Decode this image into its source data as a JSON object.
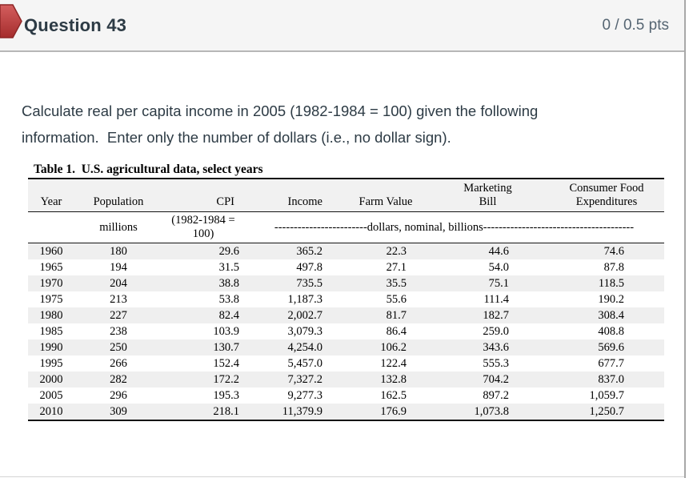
{
  "header": {
    "flag_icon": "red-flag-marker",
    "title": "Question 43",
    "points": "0 / 0.5 pts"
  },
  "question": {
    "line1": "Calculate real per capita income in 2005 (1982-1984 = 100) given the following",
    "line2": "information.  Enter only the number of dollars (i.e., no dollar sign)."
  },
  "table": {
    "title": "Table 1.  U.S. agricultural data, select years",
    "columns": [
      "Year",
      "Population",
      "CPI",
      "Income",
      "Farm Value",
      "Marketing Bill",
      "Consumer Food Expenditures"
    ],
    "subheader": {
      "population_units": "millions",
      "cpi_base": "(1982-1984 = 100)",
      "value_units": "------------------------dollars, nominal, billions---------------------------------------"
    },
    "rows": [
      [
        "1960",
        "180",
        "29.6",
        "365.2",
        "22.3",
        "44.6",
        "74.6"
      ],
      [
        "1965",
        "194",
        "31.5",
        "497.8",
        "27.1",
        "54.0",
        "87.8"
      ],
      [
        "1970",
        "204",
        "38.8",
        "735.5",
        "35.5",
        "75.1",
        "118.5"
      ],
      [
        "1975",
        "213",
        "53.8",
        "1,187.3",
        "55.6",
        "111.4",
        "190.2"
      ],
      [
        "1980",
        "227",
        "82.4",
        "2,002.7",
        "81.7",
        "182.7",
        "308.4"
      ],
      [
        "1985",
        "238",
        "103.9",
        "3,079.3",
        "86.4",
        "259.0",
        "408.8"
      ],
      [
        "1990",
        "250",
        "130.7",
        "4,254.0",
        "106.2",
        "343.6",
        "569.6"
      ],
      [
        "1995",
        "266",
        "152.4",
        "5,457.0",
        "122.4",
        "555.3",
        "677.7"
      ],
      [
        "2000",
        "282",
        "172.2",
        "7,327.2",
        "132.8",
        "704.2",
        "837.0"
      ],
      [
        "2005",
        "296",
        "195.3",
        "9,277.3",
        "162.5",
        "897.2",
        "1,059.7"
      ],
      [
        "2010",
        "309",
        "218.1",
        "11,379.9",
        "176.9",
        "1,073.8",
        "1,250.7"
      ]
    ]
  },
  "colors": {
    "flag_red": "#b53131",
    "flag_red_dark": "#8e2727",
    "header_bg": "#f5f5f5",
    "header_divider": "#b7b7b7",
    "row_stripe": "#efefef",
    "table_rule": "#151515",
    "title_text": "#2d3b45",
    "points_text": "#556572",
    "frame_border": "#a8a8a8"
  }
}
